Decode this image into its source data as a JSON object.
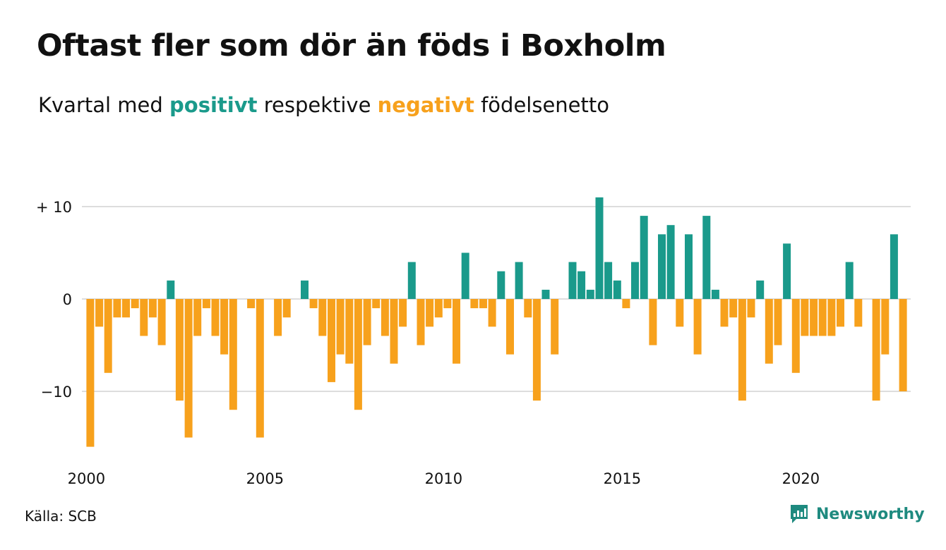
{
  "title": "Oftast fler som dör än föds i Boxholm",
  "subtitle": {
    "prefix": "Kvartal med ",
    "positive": "positivt",
    "middle": " respektive ",
    "negative": "negativt",
    "suffix": " födelsenetto"
  },
  "source": "Källa: SCB",
  "brand": {
    "name": "Newsworthy",
    "icon": "newsworthy-chart-bubble-icon"
  },
  "colors": {
    "positive": "#1a9a8b",
    "negative": "#f7a11c",
    "grid": "#dddddd",
    "text": "#111111"
  },
  "chart_data": {
    "type": "bar",
    "xlabel": "",
    "ylabel": "",
    "ylim": [
      -16,
      11
    ],
    "yticks": [
      {
        "value": 10,
        "label": "+ 10"
      },
      {
        "value": 0,
        "label": "0"
      },
      {
        "value": -10,
        "label": "−10"
      }
    ],
    "xticks": [
      "2000",
      "2005",
      "2010",
      "2015",
      "2020"
    ],
    "grid": true,
    "legend": "none (colored words in subtitle)",
    "start": "2000 Q1",
    "frequency": "quarterly",
    "values": [
      -16,
      -3,
      -8,
      -2,
      -2,
      -1,
      -4,
      -2,
      -5,
      2,
      -11,
      -15,
      -4,
      -1,
      -4,
      -6,
      -12,
      0,
      -1,
      -15,
      0,
      -4,
      -2,
      0,
      2,
      -1,
      -4,
      -9,
      -6,
      -7,
      -12,
      -5,
      -1,
      -4,
      -7,
      -3,
      4,
      -5,
      -3,
      -2,
      -1,
      -7,
      5,
      -1,
      -1,
      -3,
      3,
      -6,
      4,
      -2,
      -11,
      1,
      -6,
      0,
      4,
      3,
      1,
      11,
      4,
      2,
      -1,
      4,
      9,
      -5,
      7,
      8,
      -3,
      7,
      -6,
      9,
      1,
      -3,
      -2,
      -11,
      -2,
      2,
      -7,
      -5,
      6,
      -8,
      -4,
      -4,
      -4,
      -4,
      -3,
      4,
      -3,
      0,
      -11,
      -6,
      7,
      -10
    ]
  }
}
